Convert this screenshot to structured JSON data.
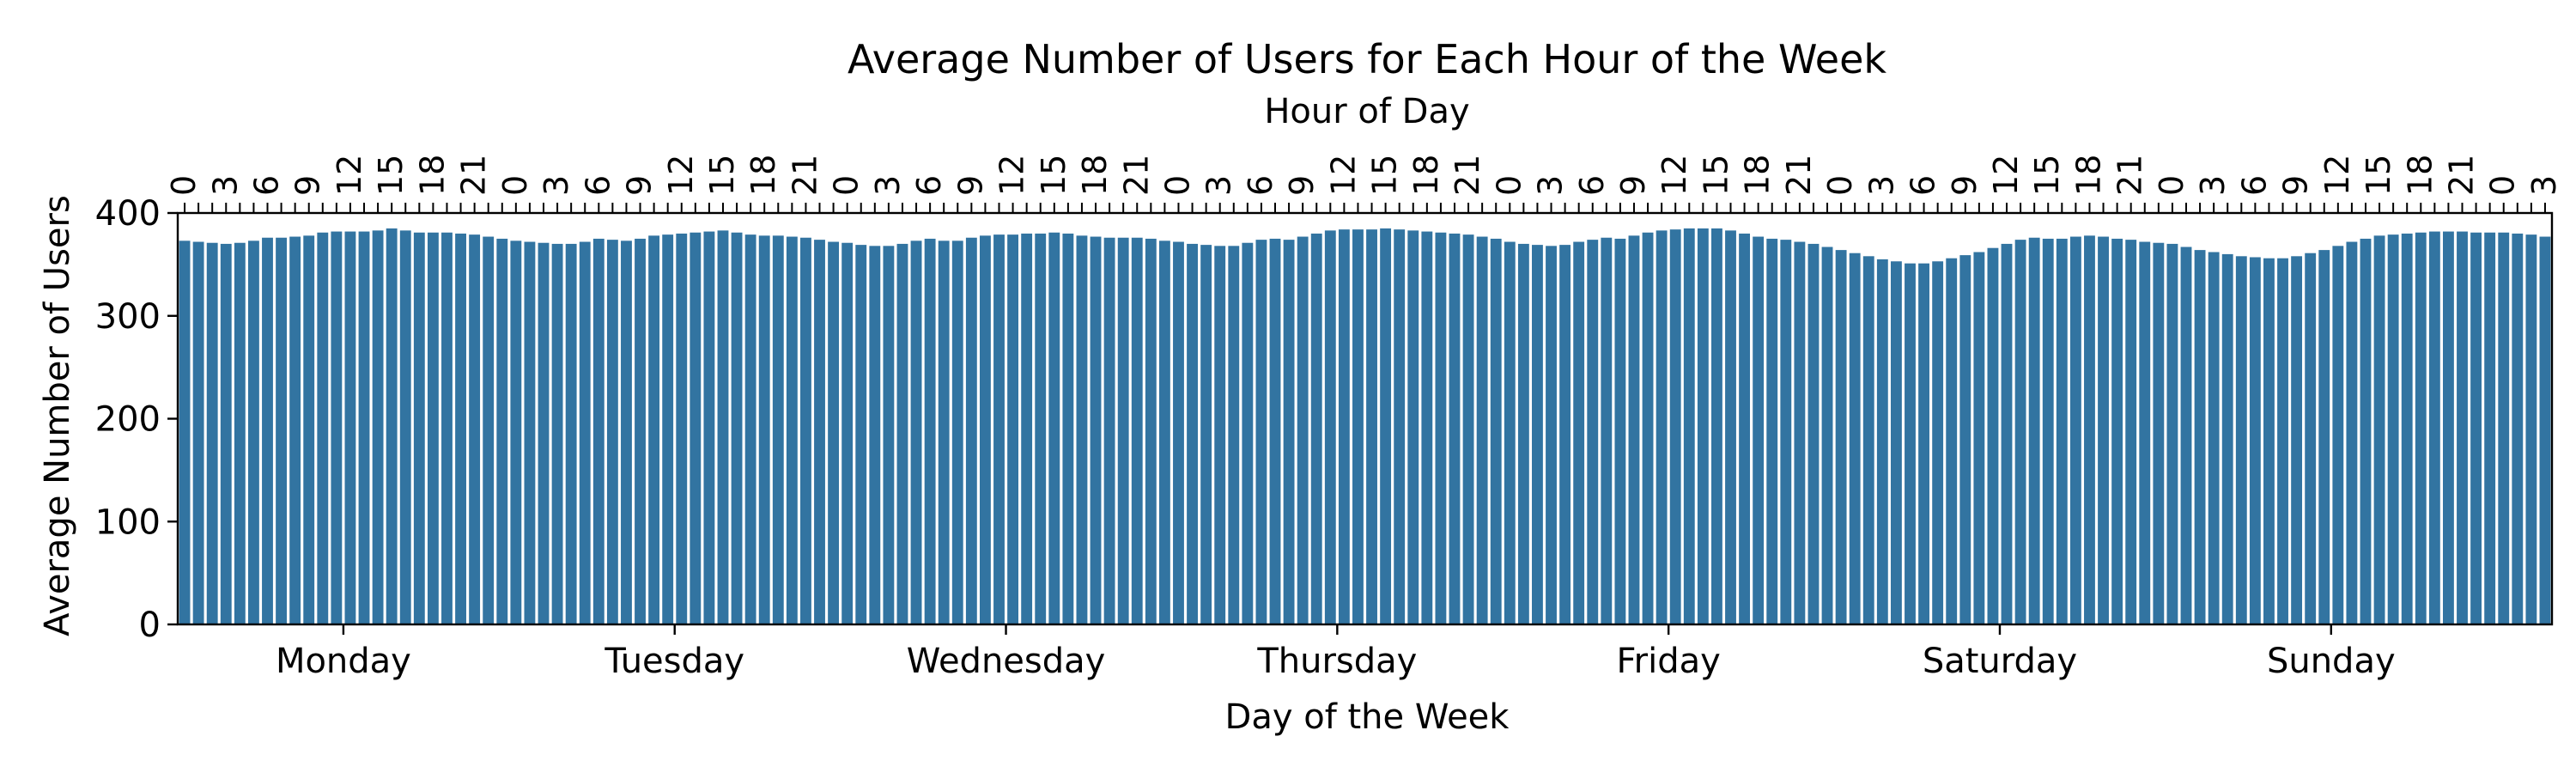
{
  "chart_data": {
    "type": "bar",
    "title": "Average Number of Users for Each Hour of the Week",
    "xlabel": "Day of the Week",
    "ylabel": "Average Number of Users",
    "top_xlabel": "Hour of Day",
    "ylim": [
      0,
      400
    ],
    "yticks": [
      0,
      100,
      200,
      300,
      400
    ],
    "days": [
      "Monday",
      "Tuesday",
      "Wednesday",
      "Thursday",
      "Friday",
      "Saturday",
      "Sunday"
    ],
    "hour_tick_labels": [
      "0",
      "3",
      "6",
      "9",
      "12",
      "15",
      "18",
      "21"
    ],
    "grid": false,
    "colors": {
      "bar": "#3274a1",
      "axis": "#000000"
    },
    "series": [
      {
        "values": [
          373,
          372,
          371,
          370,
          371,
          373,
          376,
          376,
          377,
          378,
          381,
          382,
          382,
          382,
          383,
          385,
          383,
          381,
          381,
          381,
          380,
          379,
          377,
          375,
          373,
          372,
          371,
          370,
          370,
          372,
          375,
          374,
          373,
          375,
          378,
          379,
          380,
          381,
          382,
          383,
          381,
          379,
          378,
          378,
          377,
          376,
          374,
          372,
          371,
          369,
          368,
          368,
          370,
          373,
          375,
          373,
          373,
          376,
          378,
          379,
          379,
          380,
          380,
          381,
          380,
          378,
          377,
          376,
          376,
          376,
          375,
          373,
          372,
          370,
          369,
          368,
          368,
          371,
          374,
          375,
          374,
          377,
          380,
          383,
          384,
          384,
          384,
          385,
          384,
          383,
          382,
          381,
          380,
          379,
          377,
          375,
          372,
          370,
          369,
          368,
          369,
          372,
          374,
          376,
          375,
          378,
          381,
          383,
          384,
          385,
          385,
          385,
          383,
          380,
          377,
          375,
          374,
          372,
          370,
          367,
          364,
          361,
          358,
          355,
          353,
          351,
          351,
          353,
          356,
          359,
          362,
          366,
          370,
          374,
          376,
          375,
          375,
          377,
          378,
          377,
          375,
          374,
          372,
          371,
          370,
          367,
          364,
          362,
          360,
          358,
          357,
          356,
          356,
          358,
          361,
          364,
          368,
          372,
          375,
          378,
          379,
          380,
          381,
          382,
          382,
          382,
          381,
          381,
          381,
          380,
          379,
          377
        ]
      }
    ]
  }
}
